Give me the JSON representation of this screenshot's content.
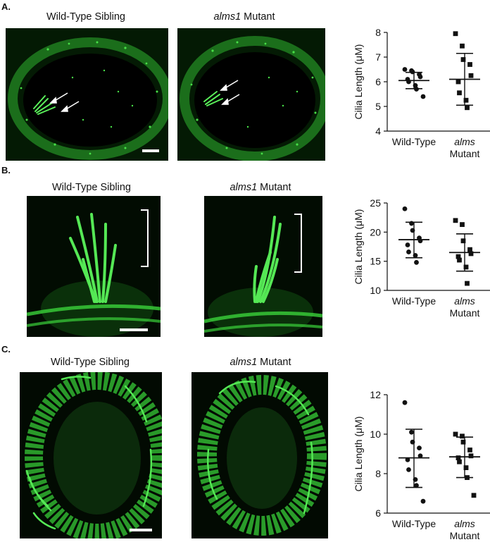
{
  "panels": [
    {
      "letter": "A.",
      "wt_title": "Wild-Type Sibling",
      "mut_title_italic": "alms1",
      "mut_title_rest": " Mutant"
    },
    {
      "letter": "B.",
      "wt_title": "Wild-Type Sibling",
      "mut_title_italic": "alms1",
      "mut_title_rest": " Mutant"
    },
    {
      "letter": "C.",
      "wt_title": "Wild-Type Sibling",
      "mut_title_italic": "alms1",
      "mut_title_rest": " Mutant"
    }
  ],
  "colors": {
    "fluor": "#3ddc3d",
    "dark": "#000000",
    "marker": "#111111"
  },
  "chart_data": [
    {
      "type": "scatter",
      "ylabel": "Cilia Length (μM)",
      "ylim": [
        4,
        8
      ],
      "yticks": [
        4,
        5,
        6,
        7,
        8
      ],
      "categories": [
        "Wild-Type",
        "alms Mutant"
      ],
      "category_lines": [
        [
          "Wild-Type"
        ],
        [
          "alms",
          "Mutant"
        ]
      ],
      "series": [
        {
          "name": "Wild-Type",
          "marker": "circle",
          "values": [
            6.5,
            6.45,
            6.4,
            6.3,
            6.2,
            6.1,
            6.0,
            5.85,
            5.7,
            5.4
          ],
          "mean": 6.05,
          "sd_low": 5.72,
          "sd_high": 6.38
        },
        {
          "name": "alms Mutant",
          "marker": "square",
          "values": [
            7.95,
            7.45,
            6.9,
            6.7,
            6.25,
            6.0,
            5.55,
            5.25,
            4.95
          ],
          "mean": 6.1,
          "sd_low": 5.05,
          "sd_high": 7.15
        }
      ]
    },
    {
      "type": "scatter",
      "ylabel": "Cilia Length (μM)",
      "ylim": [
        10,
        25
      ],
      "yticks": [
        10,
        15,
        20,
        25
      ],
      "categories": [
        "Wild-Type",
        "alms Mutant"
      ],
      "category_lines": [
        [
          "Wild-Type"
        ],
        [
          "alms",
          "Mutant"
        ]
      ],
      "series": [
        {
          "name": "Wild-Type",
          "marker": "circle",
          "values": [
            24.0,
            21.5,
            20.3,
            19.0,
            18.5,
            17.8,
            16.6,
            16.0,
            14.8
          ],
          "mean": 18.7,
          "sd_low": 15.6,
          "sd_high": 21.7
        },
        {
          "name": "alms Mutant",
          "marker": "square",
          "values": [
            22.0,
            21.3,
            18.5,
            17.0,
            16.3,
            15.8,
            15.2,
            14.0,
            11.2
          ],
          "mean": 16.5,
          "sd_low": 13.3,
          "sd_high": 19.7
        }
      ]
    },
    {
      "type": "scatter",
      "ylabel": "Cilia Length (μM)",
      "ylim": [
        6,
        12
      ],
      "yticks": [
        6,
        8,
        10,
        12
      ],
      "categories": [
        "Wild-Type",
        "alms Mutant"
      ],
      "category_lines": [
        [
          "Wild-Type"
        ],
        [
          "alms",
          "Mutant"
        ]
      ],
      "series": [
        {
          "name": "Wild-Type",
          "marker": "circle",
          "values": [
            11.6,
            10.1,
            9.6,
            9.3,
            8.9,
            8.7,
            8.2,
            7.7,
            7.4,
            6.6
          ],
          "mean": 8.8,
          "sd_low": 7.3,
          "sd_high": 10.25
        },
        {
          "name": "alms Mutant",
          "marker": "square",
          "values": [
            10.0,
            9.9,
            9.6,
            9.2,
            8.9,
            8.8,
            8.6,
            8.3,
            7.8,
            6.9
          ],
          "mean": 8.85,
          "sd_low": 7.8,
          "sd_high": 9.85
        }
      ]
    }
  ]
}
